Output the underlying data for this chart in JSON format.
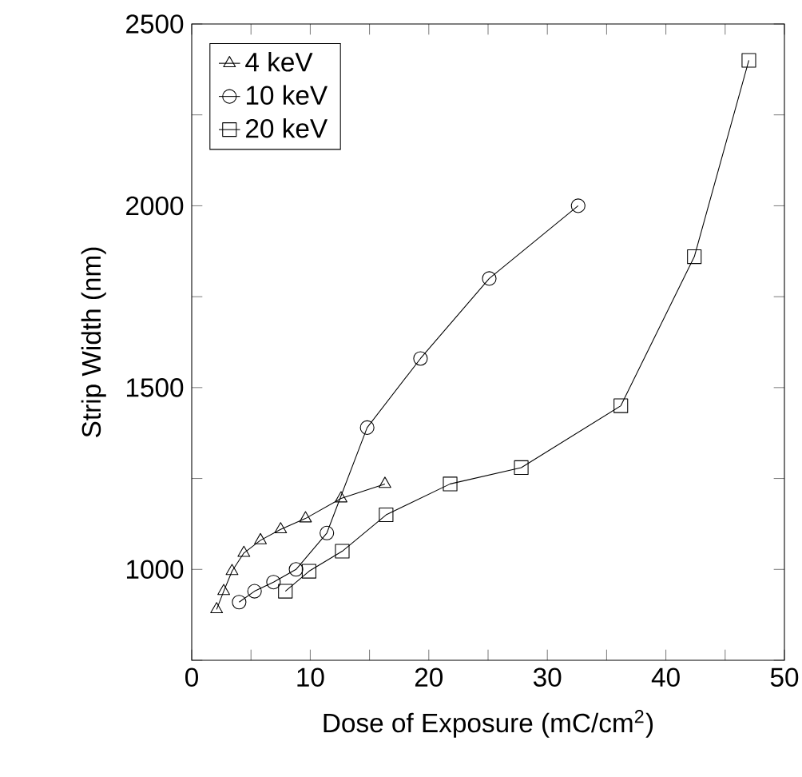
{
  "chart_data": {
    "type": "line",
    "xlabel": "Dose of Exposure (mC/cm$^{2}$)",
    "ylabel": "Strip Width (nm)",
    "xlim": [
      0,
      50
    ],
    "ylim": [
      750,
      2500
    ],
    "xticks": [
      0,
      {
        "value": 5,
        "label": null
      },
      10,
      {
        "value": 15,
        "label": null
      },
      20,
      {
        "value": 25,
        "label": null
      },
      30,
      {
        "value": 35,
        "label": null
      },
      40,
      {
        "value": 45,
        "label": null
      },
      50
    ],
    "yticks": [
      {
        "value": 750,
        "label": null
      },
      1000,
      {
        "value": 1250,
        "label": null
      },
      1500,
      {
        "value": 1750,
        "label": null
      },
      2000,
      {
        "value": 2250,
        "label": null
      },
      2500
    ],
    "grid": false,
    "legend": "top left",
    "series": [
      {
        "name": "4 keV",
        "color": "#000000",
        "marker": "triangle",
        "x": [
          2.1,
          2.7,
          3.4,
          4.4,
          5.8,
          7.5,
          9.6,
          12.6,
          16.3
        ],
        "values": [
          890,
          940,
          995,
          1045,
          1080,
          1110,
          1140,
          1195,
          1235
        ]
      },
      {
        "name": "10 keV",
        "color": "#000000",
        "marker": "circle",
        "x": [
          4.0,
          5.3,
          6.9,
          8.8,
          11.4,
          14.8,
          19.3,
          25.1,
          32.6
        ],
        "values": [
          910,
          940,
          965,
          1000,
          1100,
          1390,
          1580,
          1800,
          2000
        ]
      },
      {
        "name": "20 keV",
        "color": "#000000",
        "marker": "square",
        "x": [
          7.9,
          9.9,
          12.7,
          16.4,
          21.8,
          27.8,
          36.2,
          42.4,
          47.0
        ],
        "values": [
          940,
          995,
          1050,
          1150,
          1235,
          1280,
          1450,
          1860,
          2400
        ]
      }
    ]
  }
}
